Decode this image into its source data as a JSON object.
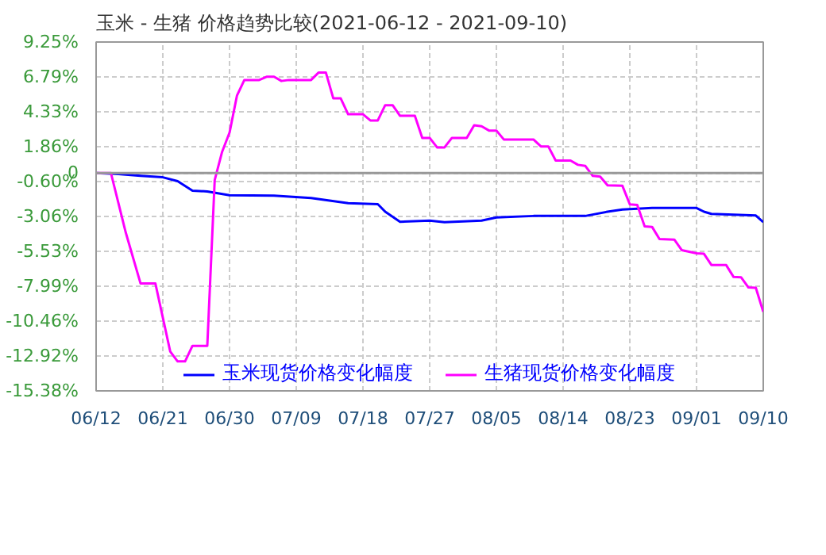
{
  "chart_data": {
    "type": "line",
    "title": "玉米 - 生猪  价格趋势比较(2021-06-12 - 2021-09-10)",
    "series": [
      {
        "name": "玉米现货价格变化幅度",
        "color": "#0000ff",
        "x": [
          "2021-06-12",
          "2021-06-15",
          "2021-06-18",
          "2021-06-21",
          "2021-06-23",
          "2021-06-25",
          "2021-06-27",
          "2021-06-30",
          "2021-07-06",
          "2021-07-11",
          "2021-07-16",
          "2021-07-20",
          "2021-07-21",
          "2021-07-23",
          "2021-07-27",
          "2021-07-29",
          "2021-08-03",
          "2021-08-05",
          "2021-08-10",
          "2021-08-17",
          "2021-08-20",
          "2021-08-22",
          "2021-08-26",
          "2021-09-01",
          "2021-09-02",
          "2021-09-03",
          "2021-09-09",
          "2021-09-10"
        ],
        "values": [
          0,
          -0.07,
          -0.2,
          -0.3,
          -0.57,
          -1.24,
          -1.3,
          -1.57,
          -1.6,
          -1.76,
          -2.13,
          -2.2,
          -2.73,
          -3.44,
          -3.36,
          -3.47,
          -3.36,
          -3.14,
          -3.03,
          -3.03,
          -2.73,
          -2.58,
          -2.47,
          -2.47,
          -2.73,
          -2.88,
          -3.0,
          -3.47
        ]
      },
      {
        "name": "生猪现货价格变化幅度",
        "color": "#ff00ff",
        "x": [
          "2021-06-12",
          "2021-06-14",
          "2021-06-16",
          "2021-06-18",
          "2021-06-20",
          "2021-06-22",
          "2021-06-23",
          "2021-06-24",
          "2021-06-25",
          "2021-06-27",
          "2021-06-28",
          "2021-06-29",
          "2021-06-30",
          "2021-07-01",
          "2021-07-02",
          "2021-07-04",
          "2021-07-05",
          "2021-07-06",
          "2021-07-07",
          "2021-07-08",
          "2021-07-11",
          "2021-07-12",
          "2021-07-13",
          "2021-07-14",
          "2021-07-15",
          "2021-07-16",
          "2021-07-18",
          "2021-07-19",
          "2021-07-20",
          "2021-07-21",
          "2021-07-22",
          "2021-07-23",
          "2021-07-25",
          "2021-07-26",
          "2021-07-27",
          "2021-07-28",
          "2021-07-29",
          "2021-07-30",
          "2021-08-01",
          "2021-08-02",
          "2021-08-03",
          "2021-08-04",
          "2021-08-05",
          "2021-08-06",
          "2021-08-10",
          "2021-08-11",
          "2021-08-12",
          "2021-08-13",
          "2021-08-15",
          "2021-08-16",
          "2021-08-17",
          "2021-08-18",
          "2021-08-19",
          "2021-08-20",
          "2021-08-22",
          "2021-08-23",
          "2021-08-24",
          "2021-08-25",
          "2021-08-26",
          "2021-08-27",
          "2021-08-29",
          "2021-08-30",
          "2021-09-01",
          "2021-09-02",
          "2021-09-03",
          "2021-09-05",
          "2021-09-06",
          "2021-09-07",
          "2021-09-08",
          "2021-09-09",
          "2021-09-10"
        ],
        "values": [
          0,
          0,
          -4.2,
          -7.8,
          -7.8,
          -12.6,
          -13.3,
          -13.3,
          -12.2,
          -12.2,
          -0.5,
          1.5,
          2.85,
          5.46,
          6.57,
          6.57,
          6.8,
          6.8,
          6.5,
          6.57,
          6.57,
          7.09,
          7.09,
          5.27,
          5.27,
          4.15,
          4.15,
          3.71,
          3.71,
          4.79,
          4.79,
          4.04,
          4.04,
          2.48,
          2.48,
          1.81,
          1.81,
          2.48,
          2.48,
          3.37,
          3.3,
          3.0,
          3.0,
          2.37,
          2.37,
          1.88,
          1.88,
          0.88,
          0.88,
          0.58,
          0.5,
          -0.2,
          -0.25,
          -0.87,
          -0.9,
          -2.21,
          -2.25,
          -3.77,
          -3.8,
          -4.66,
          -4.7,
          -5.44,
          -5.67,
          -5.7,
          -6.49,
          -6.5,
          -7.34,
          -7.36,
          -8.08,
          -8.1,
          -9.8
        ]
      }
    ],
    "xlim": [
      "2021-06-12",
      "2021-09-10"
    ],
    "xticks": [
      {
        "value": "2021-06-12",
        "label": "06/12"
      },
      {
        "value": "2021-06-21",
        "label": "06/21"
      },
      {
        "value": "2021-06-30",
        "label": "06/30"
      },
      {
        "value": "2021-07-09",
        "label": "07/09"
      },
      {
        "value": "2021-07-18",
        "label": "07/18"
      },
      {
        "value": "2021-07-27",
        "label": "07/27"
      },
      {
        "value": "2021-08-05",
        "label": "08/05"
      },
      {
        "value": "2021-08-14",
        "label": "08/14"
      },
      {
        "value": "2021-08-23",
        "label": "08/23"
      },
      {
        "value": "2021-09-01",
        "label": "09/01"
      },
      {
        "value": "2021-09-10",
        "label": "09/10"
      }
    ],
    "ylim": [
      -15.38,
      9.25
    ],
    "yticks": [
      {
        "value": 9.25,
        "label": "9.25%"
      },
      {
        "value": 6.79,
        "label": "6.79%"
      },
      {
        "value": 4.33,
        "label": "4.33%"
      },
      {
        "value": 1.86,
        "label": "1.86%"
      },
      {
        "value": 0,
        "label": "0"
      },
      {
        "value": -0.6,
        "label": "-0.60%"
      },
      {
        "value": -3.06,
        "label": "-3.06%"
      },
      {
        "value": -5.53,
        "label": "-5.53%"
      },
      {
        "value": -7.99,
        "label": "-7.99%"
      },
      {
        "value": -10.46,
        "label": "-10.46%"
      },
      {
        "value": -12.92,
        "label": "-12.92%"
      },
      {
        "value": -15.38,
        "label": "-15.38%"
      }
    ],
    "ref_lines": [
      {
        "axis": "y",
        "value": 0,
        "color": "#999999"
      }
    ],
    "grid": true,
    "legend": "bottom",
    "line_style": "solid"
  }
}
